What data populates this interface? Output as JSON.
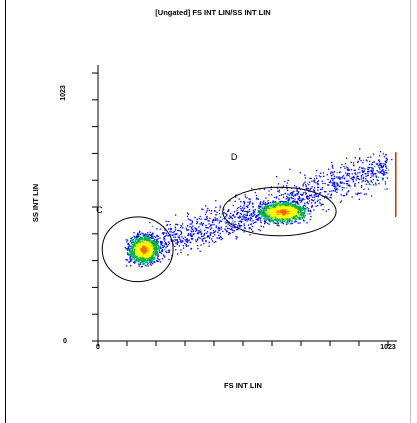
{
  "chart_data": {
    "type": "scatter",
    "title": "[Ungated] FS INT LIN/SS INT LIN",
    "xlabel": "FS INT LIN",
    "ylabel": "SS INT LIN",
    "xlim": [
      0,
      1023
    ],
    "ylim": [
      0,
      1023
    ],
    "x_tick_labels": [
      "0",
      "1023"
    ],
    "y_tick_labels": [
      "0",
      "1023"
    ],
    "grid": false,
    "colors": {
      "low": "#0000ff",
      "mid": "#00b050",
      "high": "#ffff00",
      "peak": "#ff6600"
    },
    "populations": [
      {
        "label": "C",
        "center": [
          160,
          340
        ],
        "gate": {
          "cx": 140,
          "cy": 340,
          "rx": 125,
          "ry": 120
        }
      },
      {
        "label": "D",
        "center": [
          650,
          480
        ],
        "gate": {
          "cx": 640,
          "cy": 480,
          "rx": 200,
          "ry": 90
        }
      }
    ],
    "gate_labels": [
      {
        "label": "C",
        "x": 5,
        "y": 475
      },
      {
        "label": "D",
        "x": 480,
        "y": 670
      }
    ],
    "spread": {
      "from": [
        160,
        340
      ],
      "to": [
        1023,
        650
      ],
      "width": 80
    }
  }
}
